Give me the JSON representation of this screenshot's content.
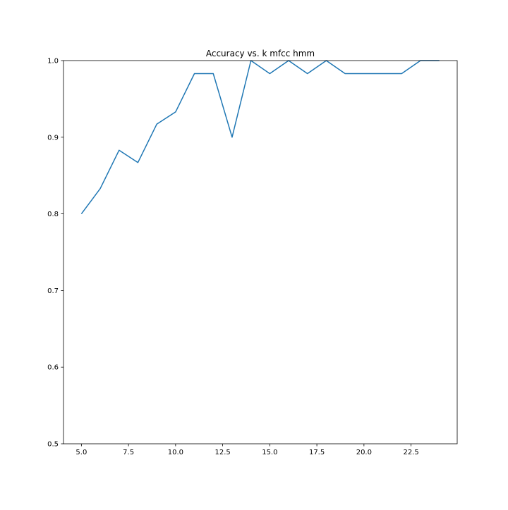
{
  "chart_data": {
    "type": "line",
    "title": "Accuracy vs. k mfcc hmm",
    "xlabel": "",
    "ylabel": "",
    "xlim": [
      4.05,
      24.95
    ],
    "ylim": [
      0.5,
      1.0
    ],
    "xticks": [
      5.0,
      7.5,
      10.0,
      12.5,
      15.0,
      17.5,
      20.0,
      22.5
    ],
    "xtick_labels": [
      "5.0",
      "7.5",
      "10.0",
      "12.5",
      "15.0",
      "17.5",
      "20.0",
      "22.5"
    ],
    "yticks": [
      0.5,
      0.6,
      0.7,
      0.8,
      0.9,
      1.0
    ],
    "ytick_labels": [
      "0.5",
      "0.6",
      "0.7",
      "0.8",
      "0.9",
      "1.0"
    ],
    "grid": false,
    "series": [
      {
        "color": "#1f77b4",
        "x": [
          5,
          6,
          7,
          8,
          9,
          10,
          11,
          12,
          13,
          14,
          15,
          16,
          17,
          18,
          19,
          20,
          21,
          22,
          23,
          24
        ],
        "values": [
          0.8,
          0.833,
          0.883,
          0.867,
          0.917,
          0.933,
          0.983,
          0.983,
          0.9,
          1.0,
          0.983,
          1.0,
          0.983,
          1.0,
          0.983,
          0.983,
          0.983,
          0.983,
          1.0,
          1.0
        ]
      }
    ]
  }
}
